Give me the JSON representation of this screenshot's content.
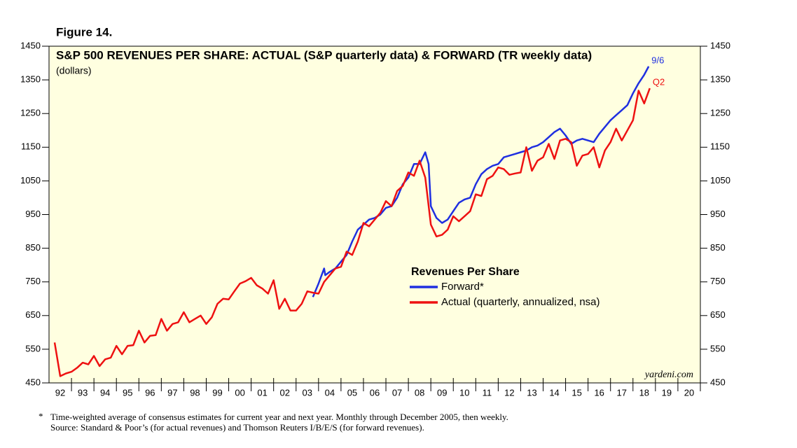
{
  "figure_label": "Figure 14.",
  "chart_data": {
    "type": "line",
    "title": "S&P 500 REVENUES PER SHARE: ACTUAL (S&P quarterly data) & FORWARD (TR weekly data)",
    "subtitle": "(dollars)",
    "legend_title": "Revenues Per Share",
    "background": "#ffffe0",
    "xlim": [
      1992,
      2021
    ],
    "ylim": [
      450,
      1450
    ],
    "yticks": [
      450,
      550,
      650,
      750,
      850,
      950,
      1050,
      1150,
      1250,
      1350,
      1450
    ],
    "xticks": [
      {
        "value": 1992.5,
        "label": "92"
      },
      {
        "value": 1993.5,
        "label": "93"
      },
      {
        "value": 1994.5,
        "label": "94"
      },
      {
        "value": 1995.5,
        "label": "95"
      },
      {
        "value": 1996.5,
        "label": "96"
      },
      {
        "value": 1997.5,
        "label": "97"
      },
      {
        "value": 1998.5,
        "label": "98"
      },
      {
        "value": 1999.5,
        "label": "99"
      },
      {
        "value": 2000.5,
        "label": "00"
      },
      {
        "value": 2001.5,
        "label": "01"
      },
      {
        "value": 2002.5,
        "label": "02"
      },
      {
        "value": 2003.5,
        "label": "03"
      },
      {
        "value": 2004.5,
        "label": "04"
      },
      {
        "value": 2005.5,
        "label": "05"
      },
      {
        "value": 2006.5,
        "label": "06"
      },
      {
        "value": 2007.5,
        "label": "07"
      },
      {
        "value": 2008.5,
        "label": "08"
      },
      {
        "value": 2009.5,
        "label": "09"
      },
      {
        "value": 2010.5,
        "label": "10"
      },
      {
        "value": 2011.5,
        "label": "11"
      },
      {
        "value": 2012.5,
        "label": "12"
      },
      {
        "value": 2013.5,
        "label": "13"
      },
      {
        "value": 2014.5,
        "label": "14"
      },
      {
        "value": 2015.5,
        "label": "15"
      },
      {
        "value": 2016.5,
        "label": "16"
      },
      {
        "value": 2017.5,
        "label": "17"
      },
      {
        "value": 2018.5,
        "label": "18"
      },
      {
        "value": 2019.5,
        "label": "19"
      },
      {
        "value": 2020.5,
        "label": "20"
      }
    ],
    "series": [
      {
        "name": "Forward*",
        "color": "#1f2fe0",
        "end_label": "9/6",
        "x": [
          2003.75,
          2004.0,
          2004.25,
          2004.3,
          2004.5,
          2004.75,
          2005.0,
          2005.25,
          2005.5,
          2005.75,
          2006.0,
          2006.25,
          2006.5,
          2006.75,
          2007.0,
          2007.25,
          2007.5,
          2007.75,
          2008.0,
          2008.25,
          2008.5,
          2008.75,
          2008.9,
          2009.0,
          2009.25,
          2009.5,
          2009.75,
          2010.0,
          2010.25,
          2010.5,
          2010.75,
          2011.0,
          2011.25,
          2011.5,
          2011.75,
          2012.0,
          2012.25,
          2012.5,
          2012.75,
          2013.0,
          2013.25,
          2013.5,
          2013.75,
          2014.0,
          2014.25,
          2014.5,
          2014.75,
          2015.0,
          2015.25,
          2015.5,
          2015.75,
          2016.0,
          2016.25,
          2016.5,
          2016.75,
          2017.0,
          2017.25,
          2017.5,
          2017.75,
          2018.0,
          2018.25,
          2018.5,
          2018.7
        ],
        "values": [
          705,
          745,
          790,
          770,
          780,
          790,
          810,
          830,
          870,
          905,
          920,
          935,
          940,
          950,
          970,
          975,
          1000,
          1040,
          1060,
          1100,
          1100,
          1135,
          1100,
          975,
          940,
          925,
          935,
          960,
          985,
          995,
          1000,
          1040,
          1070,
          1085,
          1095,
          1100,
          1120,
          1125,
          1130,
          1135,
          1140,
          1150,
          1155,
          1165,
          1180,
          1195,
          1205,
          1185,
          1160,
          1170,
          1175,
          1170,
          1165,
          1190,
          1210,
          1230,
          1245,
          1260,
          1275,
          1310,
          1340,
          1365,
          1390
        ]
      },
      {
        "name": "Actual (quarterly, annualized, nsa)",
        "color": "#ee1111",
        "end_label": "Q2",
        "x": [
          1992.25,
          1992.5,
          1992.75,
          1993.0,
          1993.25,
          1993.5,
          1993.75,
          1994.0,
          1994.25,
          1994.5,
          1994.75,
          1995.0,
          1995.25,
          1995.5,
          1995.75,
          1996.0,
          1996.25,
          1996.5,
          1996.75,
          1997.0,
          1997.25,
          1997.5,
          1997.75,
          1998.0,
          1998.25,
          1998.5,
          1998.75,
          1999.0,
          1999.25,
          1999.5,
          1999.75,
          2000.0,
          2000.25,
          2000.5,
          2000.75,
          2001.0,
          2001.25,
          2001.5,
          2001.75,
          2002.0,
          2002.25,
          2002.5,
          2002.75,
          2003.0,
          2003.25,
          2003.5,
          2003.75,
          2004.0,
          2004.25,
          2004.5,
          2004.75,
          2005.0,
          2005.25,
          2005.5,
          2005.75,
          2006.0,
          2006.25,
          2006.5,
          2006.75,
          2007.0,
          2007.25,
          2007.5,
          2007.75,
          2008.0,
          2008.25,
          2008.5,
          2008.75,
          2009.0,
          2009.25,
          2009.5,
          2009.75,
          2010.0,
          2010.25,
          2010.5,
          2010.75,
          2011.0,
          2011.25,
          2011.5,
          2011.75,
          2012.0,
          2012.25,
          2012.5,
          2012.75,
          2013.0,
          2013.25,
          2013.5,
          2013.75,
          2014.0,
          2014.25,
          2014.5,
          2014.75,
          2015.0,
          2015.25,
          2015.5,
          2015.75,
          2016.0,
          2016.25,
          2016.5,
          2016.75,
          2017.0,
          2017.25,
          2017.5,
          2017.75,
          2018.0,
          2018.25,
          2018.5,
          2018.75
        ],
        "values": [
          570,
          470,
          478,
          483,
          495,
          510,
          505,
          530,
          500,
          520,
          525,
          560,
          535,
          560,
          562,
          605,
          570,
          590,
          592,
          640,
          605,
          625,
          630,
          660,
          630,
          640,
          650,
          625,
          645,
          685,
          700,
          698,
          722,
          745,
          752,
          762,
          740,
          730,
          715,
          755,
          670,
          700,
          665,
          665,
          685,
          722,
          718,
          715,
          750,
          770,
          790,
          795,
          840,
          830,
          870,
          925,
          915,
          935,
          955,
          990,
          975,
          1020,
          1035,
          1075,
          1065,
          1110,
          1060,
          920,
          885,
          890,
          905,
          945,
          930,
          945,
          960,
          1010,
          1005,
          1055,
          1065,
          1090,
          1085,
          1068,
          1072,
          1075,
          1150,
          1080,
          1110,
          1120,
          1160,
          1115,
          1170,
          1175,
          1165,
          1095,
          1125,
          1130,
          1150,
          1090,
          1140,
          1165,
          1205,
          1170,
          1200,
          1230,
          1318,
          1280,
          1325
        ]
      }
    ],
    "credit": "yardeni.com"
  },
  "footnote": {
    "marker": "*",
    "lines": [
      "Time-weighted average of consensus estimates for current year and next year. Monthly through December 2005, then weekly.",
      "Source: Standard & Poor’s (for actual revenues) and Thomson Reuters I/B/E/S (for forward revenues)."
    ]
  }
}
